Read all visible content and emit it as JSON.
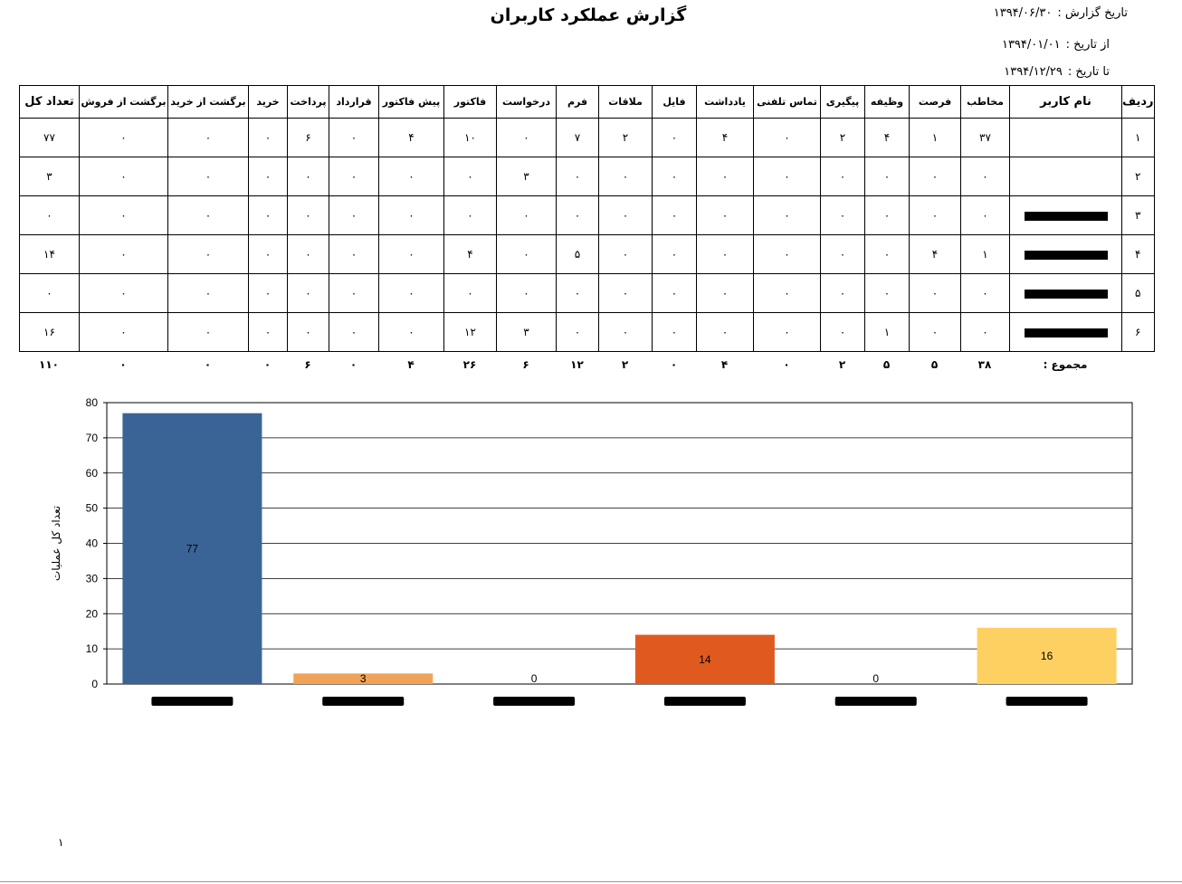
{
  "report": {
    "title": "گزارش عملکرد کاربران",
    "report_date_label": "تاریخ گزارش :",
    "report_date": "۱۳۹۴/۰۶/۳۰",
    "from_label": "از تاریخ :",
    "from_date": "۱۳۹۴/۰۱/۰۱",
    "to_label": "تا تاریخ :",
    "to_date": "۱۳۹۴/۱۲/۲۹",
    "page_number": "۱"
  },
  "table": {
    "headers": [
      "ردیف",
      "نام کاربر",
      "مخاطب",
      "فرصت",
      "وظیفه",
      "پیگیری",
      "تماس تلفنی",
      "یادداشت",
      "فایل",
      "ملاقات",
      "فرم",
      "درخواست",
      "فاکتور",
      "پیش فاکتور",
      "قرارداد",
      "پرداخت",
      "خرید",
      "برگشت از خرید",
      "برگشت از فروش",
      "تعداد کل"
    ],
    "rows": [
      {
        "row": "۱",
        "name": "",
        "values": [
          "۳۷",
          "۱",
          "۴",
          "۲",
          "۰",
          "۴",
          "۰",
          "۲",
          "۷",
          "۰",
          "۱۰",
          "۴",
          "۰",
          "۶",
          "۰",
          "۰",
          "۰",
          "۷۷"
        ]
      },
      {
        "row": "۲",
        "name": "",
        "values": [
          "۰",
          "۰",
          "۰",
          "۰",
          "۰",
          "۰",
          "۰",
          "۰",
          "۰",
          "۳",
          "۰",
          "۰",
          "۰",
          "۰",
          "۰",
          "۰",
          "۰",
          "۳"
        ]
      },
      {
        "row": "۳",
        "name": "",
        "values": [
          "۰",
          "۰",
          "۰",
          "۰",
          "۰",
          "۰",
          "۰",
          "۰",
          "۰",
          "۰",
          "۰",
          "۰",
          "۰",
          "۰",
          "۰",
          "۰",
          "۰",
          "۰"
        ]
      },
      {
        "row": "۴",
        "name": "",
        "values": [
          "۱",
          "۴",
          "۰",
          "۰",
          "۰",
          "۰",
          "۰",
          "۰",
          "۵",
          "۰",
          "۴",
          "۰",
          "۰",
          "۰",
          "۰",
          "۰",
          "۰",
          "۱۴"
        ]
      },
      {
        "row": "۵",
        "name": "",
        "values": [
          "۰",
          "۰",
          "۰",
          "۰",
          "۰",
          "۰",
          "۰",
          "۰",
          "۰",
          "۰",
          "۰",
          "۰",
          "۰",
          "۰",
          "۰",
          "۰",
          "۰",
          "۰"
        ]
      },
      {
        "row": "۶",
        "name": "",
        "values": [
          "۰",
          "۰",
          "۱",
          "۰",
          "۰",
          "۰",
          "۰",
          "۰",
          "۰",
          "۳",
          "۱۲",
          "۰",
          "۰",
          "۰",
          "۰",
          "۰",
          "۰",
          "۱۶"
        ]
      }
    ],
    "totals_label": "مجموع :",
    "totals": [
      "۳۸",
      "۵",
      "۵",
      "۲",
      "۰",
      "۴",
      "۰",
      "۲",
      "۱۲",
      "۶",
      "۲۶",
      "۴",
      "۰",
      "۶",
      "۰",
      "۰",
      "۰",
      "۱۱۰"
    ]
  },
  "chart_data": {
    "type": "bar",
    "ylabel": "تعداد کل عملیات",
    "ylim": [
      0,
      80
    ],
    "yticks": [
      0,
      10,
      20,
      30,
      40,
      50,
      60,
      70,
      80
    ],
    "grid": true,
    "legend": "none",
    "categories": [
      "",
      "",
      "",
      "",
      "",
      ""
    ],
    "values": [
      77,
      3,
      0,
      14,
      0,
      16
    ],
    "colors": [
      "#3a6496",
      "#f0a358",
      "#5b8a3a",
      "#e05a20",
      "#9a63a8",
      "#fdd062"
    ]
  }
}
